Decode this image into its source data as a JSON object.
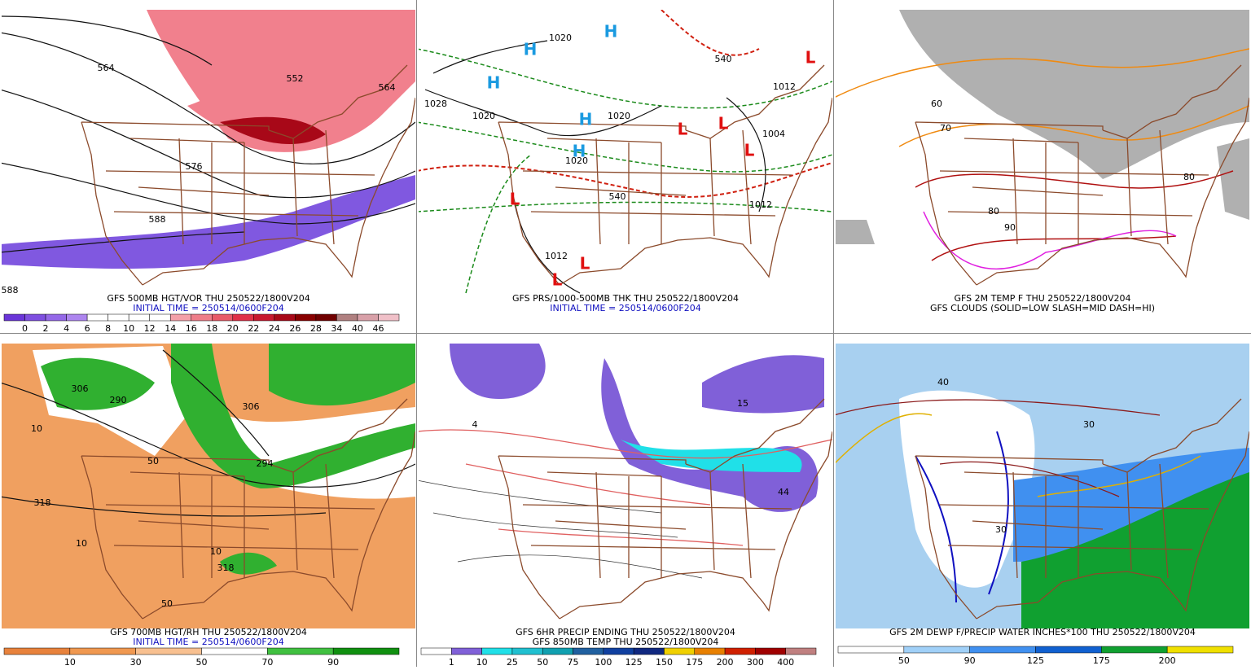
{
  "panels": [
    {
      "caption": [
        "GFS 500MB HGT/VOR THU 250522/1800V204",
        "INITIAL TIME = 250514/0600F204"
      ],
      "colorbar": {
        "labels": [
          "0",
          "2",
          "4",
          "6",
          "8",
          "10",
          "12",
          "14",
          "16",
          "18",
          "20",
          "22",
          "24",
          "26",
          "28",
          "34",
          "40",
          "46"
        ],
        "colors": [
          "#6a35d8",
          "#7e4fe0",
          "#9468e8",
          "#ad85ef",
          "#ffffff",
          "#ffffff",
          "#ffffff",
          "#ffffff",
          "#f4a0a8",
          "#ee7d88",
          "#e85a68",
          "#e03048",
          "#c81830",
          "#a80818",
          "#880000",
          "#700000",
          "#b08080",
          "#d8a0a8",
          "#f0c0c8"
        ]
      },
      "map_labels": [
        "564",
        "552",
        "564",
        "576",
        "588",
        "588"
      ]
    },
    {
      "caption": [
        "GFS PRS/1000-500MB THK THU 250522/1800V204",
        "INITIAL TIME = 250514/0600F204"
      ],
      "map_labels": [
        "1020",
        "1028",
        "1020",
        "1020",
        "1012",
        "1004",
        "1012",
        "1020",
        "1012",
        "540",
        "540",
        "H",
        "H",
        "H",
        "H",
        "H",
        "L",
        "L",
        "L",
        "L",
        "L",
        "L",
        "L"
      ]
    },
    {
      "caption": [
        "GFS 2M TEMP F THU 250522/1800V204",
        "GFS CLOUDS (SOLID=LOW SLASH=MID DASH=HI)"
      ],
      "map_labels": [
        "60",
        "70",
        "80",
        "90",
        "80"
      ]
    },
    {
      "caption": [
        "GFS 700MB HGT/RH THU 250522/1800V204",
        "INITIAL TIME = 250514/0600F204"
      ],
      "colorbar": {
        "labels": [
          "10",
          "30",
          "50",
          "70",
          "90"
        ],
        "colors": [
          "#e8823c",
          "#f09850",
          "#f8c090",
          "#ffffff",
          "#40c040",
          "#109010"
        ]
      },
      "map_labels": [
        "306",
        "290",
        "306",
        "294",
        "318",
        "318",
        "10",
        "50",
        "10",
        "10",
        "50"
      ]
    },
    {
      "caption": [
        "GFS 6HR PRECIP ENDING THU 250522/1800V204",
        "GFS 850MB TEMP THU 250522/1800V204"
      ],
      "colorbar": {
        "labels": [
          "1",
          "10",
          "25",
          "50",
          "75",
          "100",
          "125",
          "150",
          "175",
          "200",
          "300",
          "400"
        ],
        "colors": [
          "#ffffff",
          "#8060d8",
          "#20e0e8",
          "#20c0d0",
          "#10a0b0",
          "#2060a0",
          "#1040a0",
          "#102880",
          "#f0d000",
          "#e88000",
          "#d02000",
          "#a00000",
          "#c08080"
        ]
      },
      "map_labels": [
        "4",
        "15",
        "44"
      ]
    },
    {
      "caption": [
        "GFS 2M DEWP F/PRECIP WATER INCHES*100 THU 250522/1800V204"
      ],
      "colorbar": {
        "labels": [
          "50",
          "90",
          "125",
          "175",
          "200"
        ],
        "colors": [
          "#ffffff",
          "#a0d0f8",
          "#4090f0",
          "#1060d0",
          "#10a030",
          "#f0e000"
        ]
      },
      "map_labels": [
        "40",
        "30",
        "30"
      ]
    }
  ]
}
